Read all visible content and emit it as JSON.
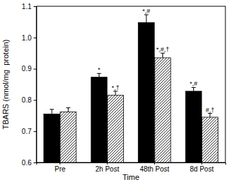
{
  "chart_data": {
    "type": "bar",
    "x_label": "Time",
    "y_label": "TBARS (nmol/mg  protein)",
    "categories": [
      "Pre",
      "2h Post",
      "48th Post",
      "8d Post"
    ],
    "series": [
      {
        "color": "#000000",
        "marker": "solid",
        "values": [
          0.755,
          0.873,
          1.048,
          0.828
        ],
        "errors": [
          0.015,
          0.012,
          0.025,
          0.012
        ],
        "annotations": [
          null,
          "*",
          "*,#",
          "*,#"
        ]
      },
      {
        "color": "#000000",
        "marker": "hatch",
        "values": [
          0.762,
          0.815,
          0.935,
          0.745
        ],
        "errors": [
          0.013,
          0.013,
          0.015,
          0.012
        ],
        "annotations": [
          null,
          "*,†",
          "*,#,†",
          "#,†"
        ]
      }
    ],
    "ylim": [
      0.6,
      1.1
    ],
    "yticks": [
      0.6,
      0.7,
      0.8,
      0.9,
      {
        "value": 1,
        "label": "1.0"
      },
      1.1
    ],
    "grid": false
  }
}
